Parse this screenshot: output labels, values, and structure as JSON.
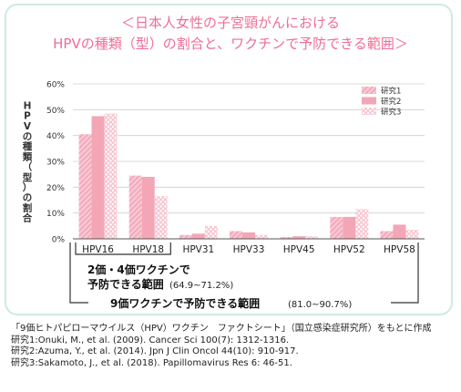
{
  "title_lines": [
    "＜日本人女性の子宮頸がんにおける",
    "HPVの種類（型）の割合と、ワクチンで予防できる範囲＞"
  ],
  "colors": {
    "accent": "#f06d95",
    "bar": "#f3a6b6",
    "frame": "#cfe9e3",
    "grid": "#cfcfcf"
  },
  "chart_data": {
    "type": "bar",
    "ylabel": "HPVの種類（型）の割合",
    "ylim": [
      0,
      60
    ],
    "yticks": [
      "0%",
      "10%",
      "20%",
      "30%",
      "40%",
      "50%",
      "60%"
    ],
    "categories": [
      "HPV16",
      "HPV18",
      "HPV31",
      "HPV33",
      "HPV45",
      "HPV52",
      "HPV58"
    ],
    "series": [
      {
        "name": "研究1",
        "values": [
          40.5,
          24.5,
          1.5,
          3.0,
          0.7,
          8.5,
          3.0
        ]
      },
      {
        "name": "研究2",
        "values": [
          47.5,
          24.0,
          2.0,
          2.5,
          1.0,
          8.5,
          5.5
        ]
      },
      {
        "name": "研究3",
        "values": [
          48.5,
          16.5,
          5.0,
          1.5,
          1.0,
          11.5,
          3.5
        ]
      }
    ],
    "legend": "top-right",
    "annotations": {
      "bracket_small_line1": "2価・4価ワクチンで",
      "bracket_small_line2": "予防できる範囲",
      "bracket_small_range": "(64.9~71.2%)",
      "bracket_large": "9価ワクチンで予防できる範囲",
      "bracket_large_range": "(81.0~90.7%)"
    }
  },
  "footer": [
    "「9価ヒトパピローマウイルス（HPV）ワクチン　ファクトシート」（国立感染症研究所）をもとに作成",
    "研究1:Onuki, M., et al. (2009). Cancer Sci 100(7): 1312-1316.",
    "研究2:Azuma, Y., et al. (2014).  Jpn J Clin Oncol 44(10): 910-917.",
    "研究3:Sakamoto, J., et al. (2018). Papillomavirus Res 6: 46-51."
  ]
}
